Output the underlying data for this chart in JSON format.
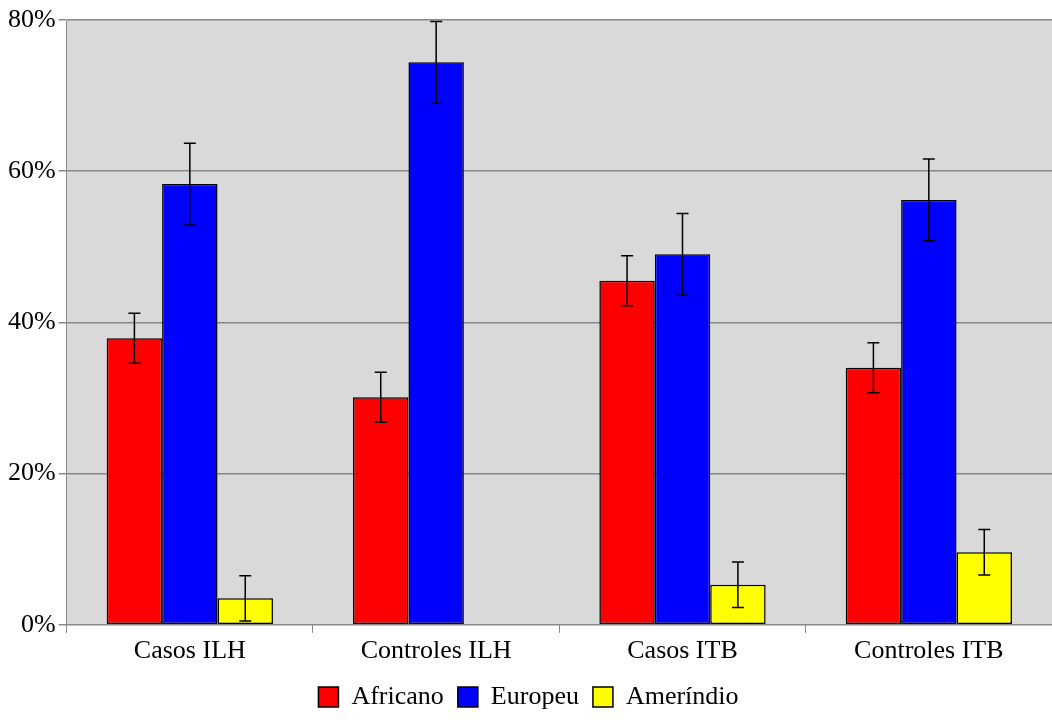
{
  "chart_data": {
    "type": "bar",
    "categories": [
      "Casos ILH",
      "Controles ILH",
      "Casos ITB",
      "Controles ITB"
    ],
    "series": [
      {
        "name": "Africano",
        "color": "#ff0000",
        "values": [
          37.9,
          30.1,
          45.5,
          34.0
        ],
        "errors": [
          3.3,
          3.3,
          3.3,
          3.3
        ]
      },
      {
        "name": "Europeu",
        "color": "#0000ff",
        "values": [
          58.3,
          74.4,
          49.0,
          56.2
        ],
        "errors": [
          5.4,
          5.4,
          5.4,
          5.4
        ]
      },
      {
        "name": "Ameríndio",
        "color": "#ffff00",
        "values": [
          3.5,
          null,
          5.3,
          9.6
        ],
        "errors": [
          3.0,
          null,
          3.0,
          3.0
        ]
      }
    ],
    "ylim": [
      0,
      80
    ],
    "yticks": [
      {
        "value": 0,
        "label": "0%"
      },
      {
        "value": 20,
        "label": "20%"
      },
      {
        "value": 40,
        "label": "40%"
      },
      {
        "value": 60,
        "label": "60%"
      },
      {
        "value": 80,
        "label": "80%"
      }
    ],
    "grid": "y",
    "legend": "bottom"
  }
}
